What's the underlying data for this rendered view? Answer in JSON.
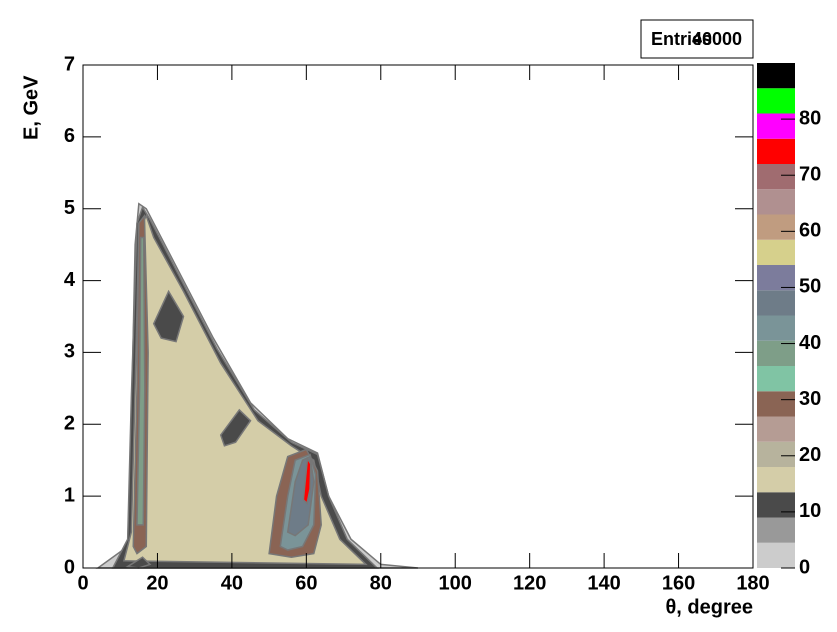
{
  "chart_data": {
    "type": "contour",
    "xlabel": "θ, degree",
    "ylabel": "E, GeV",
    "xlim": [
      0,
      180
    ],
    "xticks": [
      0,
      20,
      40,
      60,
      80,
      100,
      120,
      140,
      160,
      180
    ],
    "ylim": [
      0,
      7
    ],
    "yticks": [
      0,
      1,
      2,
      3,
      4,
      5,
      6,
      7
    ],
    "zlim": [
      0,
      90
    ],
    "zticks": [
      0,
      10,
      20,
      30,
      40,
      50,
      60,
      70,
      80
    ],
    "palette": [
      "#cccccc",
      "#999999",
      "#4a4a4a",
      "#d4cda8",
      "#b7b39d",
      "#b59c94",
      "#8a6454",
      "#80c4a4",
      "#7e9e88",
      "#7a9498",
      "#6e7c88",
      "#7c7c9c",
      "#d6d08c",
      "#c09c80",
      "#b09090",
      "#a06c70",
      "#ff0000",
      "#ff00ff",
      "#00ff00",
      "#000000"
    ],
    "stats": {
      "label": "Entries",
      "value": 40000
    },
    "contours": [
      {
        "level": 3,
        "theta": [
          4,
          12,
          13,
          14,
          15,
          17,
          25,
          35,
          45,
          55,
          63,
          66,
          72,
          80,
          90
        ],
        "E": [
          0,
          0.3,
          2,
          4.5,
          5.07,
          5,
          4.2,
          3.2,
          2.3,
          1.8,
          1.6,
          1,
          0.4,
          0.05,
          0
        ]
      },
      {
        "level": 11,
        "theta": [
          8,
          12,
          13,
          14.5,
          16,
          18,
          26,
          36,
          46,
          56,
          63,
          66,
          71,
          79
        ],
        "E": [
          0,
          0.4,
          2.4,
          4.8,
          5.02,
          4.85,
          4.05,
          3.05,
          2.2,
          1.75,
          1.58,
          1,
          0.4,
          0
        ]
      },
      {
        "level": 15,
        "theta": [
          11,
          13,
          14,
          15,
          17,
          19,
          27,
          37,
          47,
          56,
          62,
          64,
          69,
          76
        ],
        "E": [
          0.1,
          0.5,
          2.5,
          4.7,
          4.9,
          4.6,
          3.85,
          2.85,
          2.05,
          1.7,
          1.5,
          1,
          0.4,
          0.05
        ]
      },
      {
        "level": 11,
        "theta": [
          19,
          23,
          27,
          25,
          21
        ],
        "E": [
          3.4,
          3.85,
          3.5,
          3.15,
          3.2
        ]
      },
      {
        "level": 11,
        "theta": [
          37,
          42,
          45,
          41,
          38
        ],
        "E": [
          1.85,
          2.2,
          2.05,
          1.75,
          1.7
        ]
      },
      {
        "level": 11,
        "theta": [
          12,
          16,
          18,
          15
        ],
        "E": [
          0.02,
          0.15,
          0.05,
          0
        ]
      },
      {
        "level": 28,
        "theta": [
          13.5,
          14.5,
          15,
          16.5,
          17.5,
          17,
          14.5
        ],
        "E": [
          0.3,
          2.5,
          4.8,
          4.9,
          3,
          0.3,
          0.2
        ]
      },
      {
        "level": 38,
        "theta": [
          14.5,
          15.2,
          15.5,
          16.3,
          16.6,
          16.2
        ],
        "E": [
          0.6,
          2.5,
          4.6,
          4.6,
          2.5,
          0.6
        ]
      },
      {
        "level": 28,
        "theta": [
          50,
          52,
          55,
          60,
          63,
          64,
          62,
          56
        ],
        "E": [
          0.2,
          1.0,
          1.55,
          1.65,
          1.35,
          0.6,
          0.2,
          0.15
        ]
      },
      {
        "level": 41,
        "theta": [
          53,
          55,
          57,
          61,
          62.5,
          62,
          59,
          55
        ],
        "E": [
          0.3,
          1.0,
          1.5,
          1.58,
          1.3,
          0.6,
          0.3,
          0.25
        ]
      },
      {
        "level": 47,
        "theta": [
          55,
          57,
          59,
          61,
          62,
          60.5,
          57
        ],
        "E": [
          0.5,
          1.2,
          1.5,
          1.55,
          1.2,
          0.6,
          0.45
        ]
      },
      {
        "level": 75,
        "theta": [
          59.2,
          60.3,
          61.2,
          61,
          60.2
        ],
        "E": [
          0.95,
          1.52,
          1.45,
          1.1,
          0.9
        ]
      }
    ]
  }
}
